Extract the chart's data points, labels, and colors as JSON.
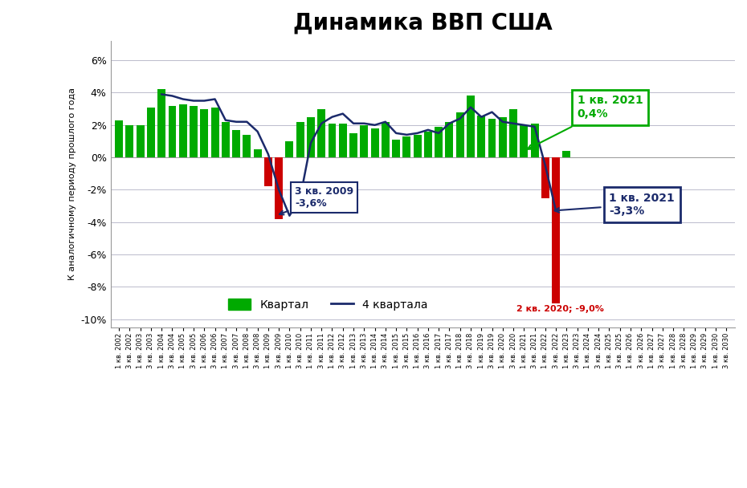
{
  "title": "Динамика ВВП США",
  "ylabel": "К аналогичному периоду прошлого года",
  "ylim": [
    -10.5,
    7.2
  ],
  "yticks": [
    -10,
    -8,
    -6,
    -4,
    -2,
    0,
    2,
    4,
    6
  ],
  "ytick_labels": [
    "-10%",
    "-8%",
    "-6%",
    "-4%",
    "-2%",
    "0%",
    "2%",
    "4%",
    "6%"
  ],
  "bar_color_green": "#00AA00",
  "bar_color_red": "#CC0000",
  "line_color": "#1B2A6B",
  "background_color": "#FFFFFF",
  "grid_color": "#BBBBCC",
  "quarters": [
    "1 кв. 2002",
    "3 кв. 2002",
    "1 кв. 2003",
    "3 кв. 2003",
    "1 кв. 2004",
    "3 кв. 2004",
    "1 кв. 2005",
    "3 кв. 2005",
    "1 кв. 2006",
    "3 кв. 2006",
    "1 кв. 2007",
    "3 кв. 2007",
    "1 кв. 2008",
    "3 кв. 2008",
    "1 кв. 2009",
    "3 кв. 2009",
    "1 кв. 2010",
    "3 кв. 2010",
    "1 кв. 2011",
    "3 кв. 2011",
    "1 кв. 2012",
    "3 кв. 2012",
    "1 кв. 2013",
    "3 кв. 2013",
    "1 кв. 2014",
    "3 кв. 2014",
    "1 кв. 2015",
    "3 кв. 2015",
    "1 кв. 2016",
    "3 кв. 2016",
    "1 кв. 2017",
    "3 кв. 2017",
    "1 кв. 2018",
    "3 кв. 2018",
    "1 кв. 2019",
    "3 кв. 2019",
    "1 кв. 2020",
    "3 кв. 2020",
    "1 кв. 2021",
    "3 кв. 2021",
    "1 кв. 2022",
    "3 кв. 2022",
    "1 кв. 2023",
    "3 кв. 2023",
    "1 кв. 2024",
    "3 кв. 2024",
    "1 кв. 2025",
    "3 кв. 2025",
    "1 кв. 2026",
    "3 кв. 2026",
    "1 кв. 2027",
    "3 кв. 2027",
    "1 кв. 2028",
    "3 кв. 2028",
    "1 кв. 2029",
    "3 кв. 2029",
    "1 кв. 2030",
    "3 кв. 2030"
  ],
  "bar_values": [
    2.3,
    2.0,
    2.0,
    3.1,
    4.2,
    3.2,
    3.3,
    3.2,
    3.0,
    3.1,
    2.2,
    1.7,
    1.4,
    0.5,
    -1.8,
    -3.8,
    1.0,
    2.2,
    2.5,
    3.0,
    2.1,
    2.1,
    1.5,
    2.0,
    1.8,
    2.2,
    1.1,
    1.3,
    1.4,
    1.6,
    1.9,
    2.2,
    2.8,
    3.8,
    2.6,
    2.4,
    2.5,
    3.0,
    2.0,
    2.1,
    -2.5,
    -9.0,
    0.4,
    0.0,
    0.0,
    0.0,
    0.0,
    0.0,
    0.0,
    0.0,
    0.0,
    0.0,
    0.0,
    0.0,
    0.0,
    0.0,
    0.0,
    0.0
  ],
  "line_values": [
    null,
    null,
    null,
    null,
    3.9,
    3.8,
    3.6,
    3.5,
    3.5,
    3.6,
    2.3,
    2.2,
    2.2,
    1.6,
    0.2,
    -2.0,
    -3.6,
    -2.5,
    0.9,
    2.1,
    2.5,
    2.7,
    2.1,
    2.1,
    2.0,
    2.2,
    1.5,
    1.4,
    1.5,
    1.7,
    1.5,
    2.1,
    2.4,
    3.1,
    2.5,
    2.8,
    2.2,
    2.1,
    2.0,
    1.9,
    -0.5,
    -3.3,
    null,
    null,
    null,
    null,
    null,
    null,
    null,
    null,
    null,
    null,
    null,
    null,
    null,
    null,
    null,
    null
  ],
  "legend_label_bar": "Квартал",
  "legend_label_line": "4 квартала",
  "title_fontsize": 20,
  "axis_fontsize": 8
}
